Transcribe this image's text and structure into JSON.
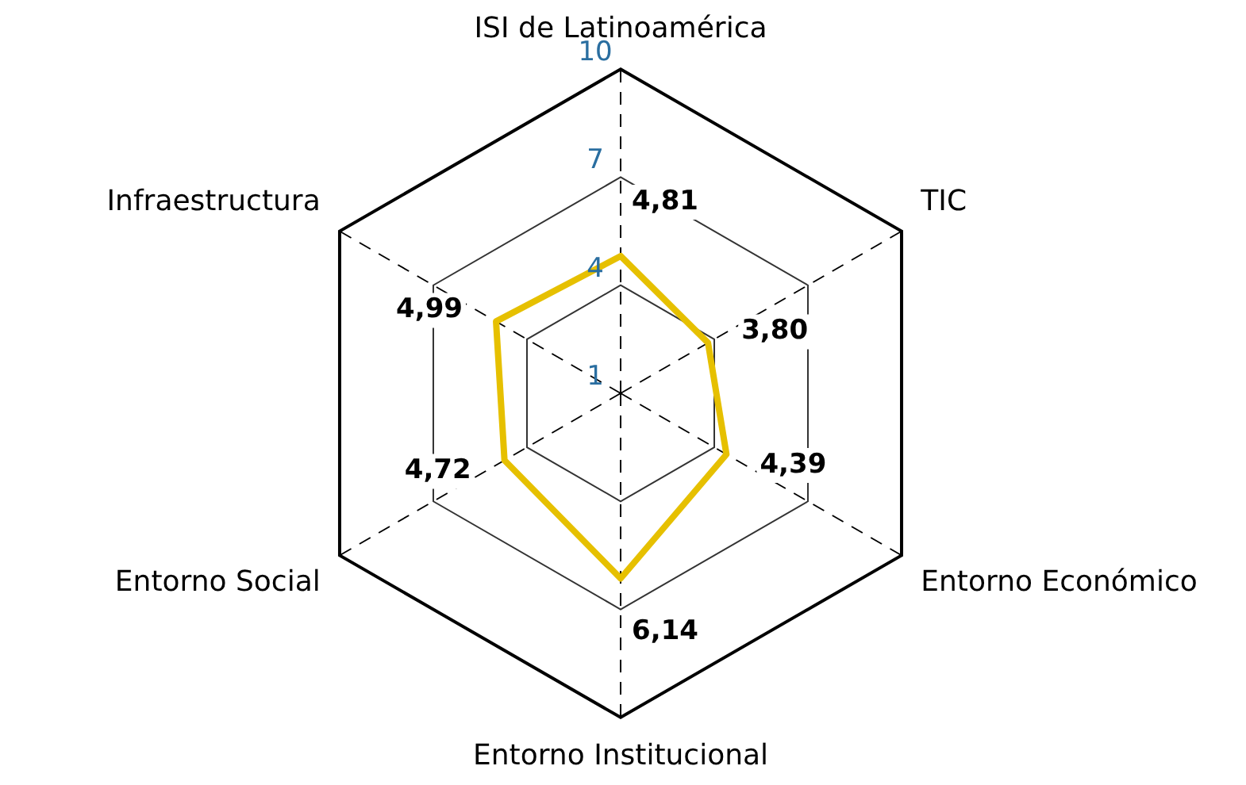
{
  "chart_data": {
    "type": "radar",
    "categories": [
      "ISI de Latinoamérica",
      "TIC",
      "Entorno Económico",
      "Entorno Institucional",
      "Entorno Social",
      "Infraestructura"
    ],
    "series": [
      {
        "color": "#e6c000",
        "values": [
          4.81,
          3.8,
          4.39,
          6.14,
          4.72,
          4.99
        ],
        "value_labels": [
          "4,81",
          "3,80",
          "4,39",
          "6,14",
          "4,72",
          "4,99"
        ]
      }
    ],
    "ylim": [
      1,
      10
    ],
    "yticks": [
      1,
      4,
      7,
      10
    ],
    "grid": true,
    "legend": false,
    "marker": "none",
    "line_style": "solid"
  }
}
